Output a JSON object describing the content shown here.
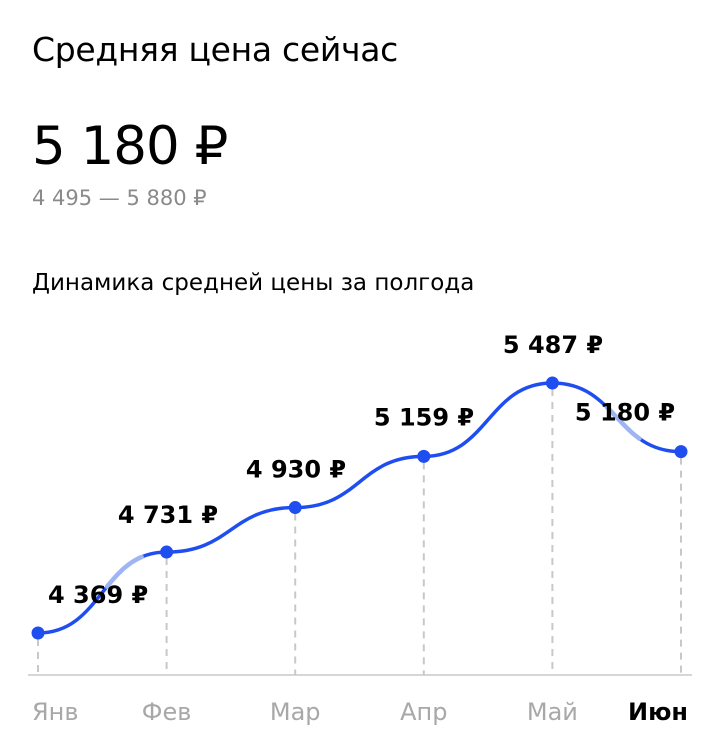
{
  "header": {
    "title": "Средняя цена сейчас",
    "price": "5 180 ₽",
    "range": "4 495 — 5 880 ₽",
    "chart_caption": "Динамика средней цены за полгода"
  },
  "colors": {
    "line": "#1f4ef0",
    "line_faded": "#9fb4f2",
    "grid": "#c8c8c8",
    "axis": "#d6d6d6"
  },
  "chart_data": {
    "type": "line",
    "categories": [
      "Янв",
      "Фев",
      "Мар",
      "Апр",
      "Май",
      "Июн"
    ],
    "values": [
      4369,
      4731,
      4930,
      5159,
      5487,
      5180
    ],
    "value_labels": [
      "4 369 ₽",
      "4 731 ₽",
      "4 930 ₽",
      "5 159 ₽",
      "5 487 ₽",
      "5 180 ₽"
    ],
    "active_category": "Июн",
    "title": "Динамика средней цены за полгода",
    "xlabel": "",
    "ylabel": "",
    "grid": "vertical dashed drop lines",
    "legend": "none"
  }
}
